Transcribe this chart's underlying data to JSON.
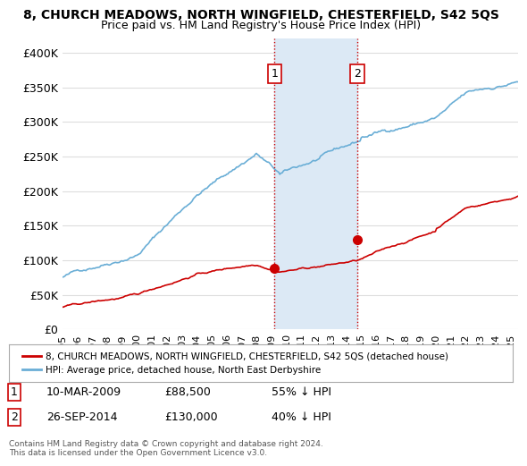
{
  "title": "8, CHURCH MEADOWS, NORTH WINGFIELD, CHESTERFIELD, S42 5QS",
  "subtitle": "Price paid vs. HM Land Registry's House Price Index (HPI)",
  "ylabel_ticks": [
    "£0",
    "£50K",
    "£100K",
    "£150K",
    "£200K",
    "£250K",
    "£300K",
    "£350K",
    "£400K"
  ],
  "ytick_values": [
    0,
    50000,
    100000,
    150000,
    200000,
    250000,
    300000,
    350000,
    400000
  ],
  "ylim": [
    0,
    420000
  ],
  "xlim_start": 1995.0,
  "xlim_end": 2025.5,
  "hpi_color": "#6aaed6",
  "price_color": "#cc0000",
  "sale1_x": 2009.19,
  "sale1_y": 88500,
  "sale2_x": 2014.73,
  "sale2_y": 130000,
  "vline_color": "#cc0000",
  "vline_style": ":",
  "highlight_rect_color": "#dce9f5",
  "legend_label_red": "8, CHURCH MEADOWS, NORTH WINGFIELD, CHESTERFIELD, S42 5QS (detached house)",
  "legend_label_blue": "HPI: Average price, detached house, North East Derbyshire",
  "annotation1_label": "1",
  "annotation2_label": "2",
  "table_row1": "1    10-MAR-2009         £88,500      55% ↓ HPI",
  "table_row2": "2    26-SEP-2014         £130,000     40% ↓ HPI",
  "footer": "Contains HM Land Registry data © Crown copyright and database right 2024.\nThis data is licensed under the Open Government Licence v3.0.",
  "background_color": "#ffffff",
  "plot_bg_color": "#ffffff",
  "grid_color": "#dddddd",
  "xtick_years": [
    1995,
    1996,
    1997,
    1998,
    1999,
    2000,
    2001,
    2002,
    2003,
    2004,
    2005,
    2006,
    2007,
    2008,
    2009,
    2010,
    2011,
    2012,
    2013,
    2014,
    2015,
    2016,
    2017,
    2018,
    2019,
    2020,
    2021,
    2022,
    2023,
    2024,
    2025
  ]
}
